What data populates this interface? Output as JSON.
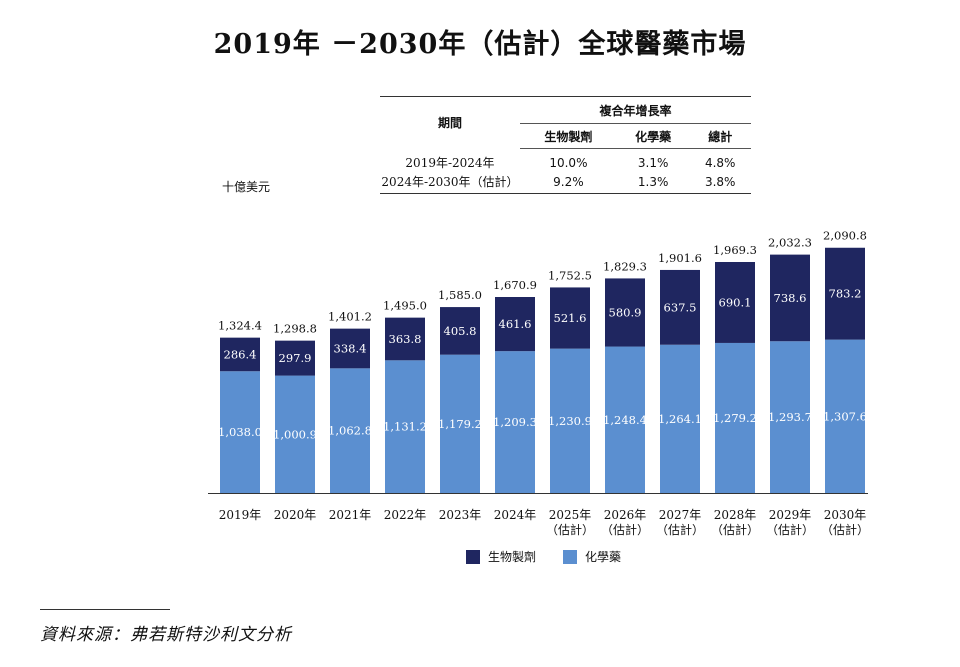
{
  "title": "2019年 －2030年（估計）全球醫藥市場",
  "unit": "十億美元",
  "cagr_table": {
    "header_period": "期間",
    "header_cagr": "複合年增長率",
    "columns": [
      "生物製劑",
      "化學藥",
      "總計"
    ],
    "rows": [
      {
        "period": "2019年-2024年",
        "values": [
          "10.0%",
          "3.1%",
          "4.8%"
        ]
      },
      {
        "period": "2024年-2030年（估計）",
        "values": [
          "9.2%",
          "1.3%",
          "3.8%"
        ]
      }
    ]
  },
  "colors": {
    "biologics": "#1f2660",
    "chemical": "#5b8fd0"
  },
  "legend": {
    "biologics": "生物製劑",
    "chemical": "化學藥"
  },
  "source": "資料來源：弗若斯特沙利文分析",
  "chart_data": {
    "type": "bar",
    "stacked": true,
    "title": "2019年 －2030年（估計）全球醫藥市場",
    "ylabel": "十億美元",
    "ylim": [
      0,
      2100
    ],
    "categories": [
      "2019年",
      "2020年",
      "2021年",
      "2022年",
      "2023年",
      "2024年",
      "2025年",
      "2026年",
      "2027年",
      "2028年",
      "2029年",
      "2030年"
    ],
    "category_sublabels": [
      "",
      "",
      "",
      "",
      "",
      "",
      "（估計）",
      "（估計）",
      "（估計）",
      "（估計）",
      "（估計）",
      "（估計）"
    ],
    "series": [
      {
        "name": "化學藥",
        "values": [
          1038.0,
          1000.9,
          1062.8,
          1131.2,
          1179.2,
          1209.3,
          1230.9,
          1248.4,
          1264.1,
          1279.2,
          1293.7,
          1307.6
        ],
        "labels": [
          "1,038.0",
          "1,000.9",
          "1,062.8",
          "1,131.2",
          "1,179.2",
          "1,209.3",
          "1,230.9",
          "1,248.4",
          "1,264.1",
          "1,279.2",
          "1,293.7",
          "1,307.6"
        ]
      },
      {
        "name": "生物製劑",
        "values": [
          286.4,
          297.9,
          338.4,
          363.8,
          405.8,
          461.6,
          521.6,
          580.9,
          637.5,
          690.1,
          738.6,
          783.2
        ],
        "labels": [
          "286.4",
          "297.9",
          "338.4",
          "363.8",
          "405.8",
          "461.6",
          "521.6",
          "580.9",
          "637.5",
          "690.1",
          "738.6",
          "783.2"
        ]
      }
    ],
    "totals": [
      1324.4,
      1298.8,
      1401.2,
      1495.0,
      1585.0,
      1670.9,
      1752.5,
      1829.3,
      1901.6,
      1969.3,
      2032.3,
      2090.8
    ],
    "total_labels": [
      "1,324.4",
      "1,298.8",
      "1,401.2",
      "1,495.0",
      "1,585.0",
      "1,670.9",
      "1,752.5",
      "1,829.3",
      "1,901.6",
      "1,969.3",
      "2,032.3",
      "2,090.8"
    ]
  }
}
